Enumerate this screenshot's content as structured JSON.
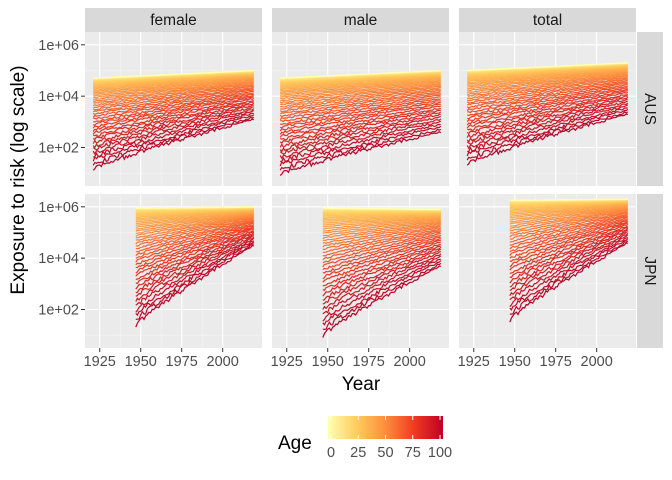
{
  "chart_data": {
    "type": "line",
    "facet_columns": [
      "female",
      "male",
      "total"
    ],
    "facet_rows": [
      "AUS",
      "JPN"
    ],
    "xlabel": "Year",
    "ylabel": "Exposure to risk (log scale)",
    "x_ticks": [
      1925,
      1950,
      1975,
      2000
    ],
    "x_tick_labels": [
      "1925",
      "1950",
      "1975",
      "2000"
    ],
    "y_ticks": [
      100,
      10000,
      1000000
    ],
    "y_tick_labels": [
      "1e+02",
      "1e+04",
      "1e+06"
    ],
    "y_scale": "log10",
    "xlim": [
      1916,
      2024
    ],
    "ylim_log10": [
      0.5,
      6.5
    ],
    "grid": true,
    "color_legend": {
      "title": "Age",
      "ticks": [
        0,
        25,
        50,
        75,
        100
      ],
      "tick_labels": [
        "0",
        "25",
        "50",
        "75",
        "100"
      ],
      "colors": [
        "#ffffb2",
        "#fecc5c",
        "#fd8d3c",
        "#f03b20",
        "#bd0026"
      ],
      "placement": "bottom"
    },
    "ages": {
      "min": 0,
      "max": 100,
      "step": 2
    },
    "series_summary": [
      {
        "country": "AUS",
        "sex": "female",
        "year_start": 1921,
        "year_end": 2019,
        "log10_age0_start": 4.7,
        "log10_age0_end": 5.0,
        "log10_age100_start": 1.2,
        "log10_age100_end": 3.1
      },
      {
        "country": "AUS",
        "sex": "male",
        "year_start": 1921,
        "year_end": 2019,
        "log10_age0_start": 4.7,
        "log10_age0_end": 5.0,
        "log10_age100_start": 1.0,
        "log10_age100_end": 2.6
      },
      {
        "country": "AUS",
        "sex": "total",
        "year_start": 1921,
        "year_end": 2019,
        "log10_age0_start": 5.0,
        "log10_age0_end": 5.3,
        "log10_age100_start": 1.4,
        "log10_age100_end": 3.3
      },
      {
        "country": "JPN",
        "sex": "female",
        "year_start": 1947,
        "year_end": 2019,
        "log10_age0_start": 5.95,
        "log10_age0_end": 6.0,
        "log10_age100_start": 1.4,
        "log10_age100_end": 4.5
      },
      {
        "country": "JPN",
        "sex": "male",
        "year_start": 1947,
        "year_end": 2019,
        "log10_age0_start": 5.95,
        "log10_age0_end": 5.9,
        "log10_age100_start": 1.0,
        "log10_age100_end": 3.7
      },
      {
        "country": "JPN",
        "sex": "total",
        "year_start": 1947,
        "year_end": 2019,
        "log10_age0_start": 6.25,
        "log10_age0_end": 6.3,
        "log10_age100_start": 1.6,
        "log10_age100_end": 4.6
      }
    ]
  }
}
